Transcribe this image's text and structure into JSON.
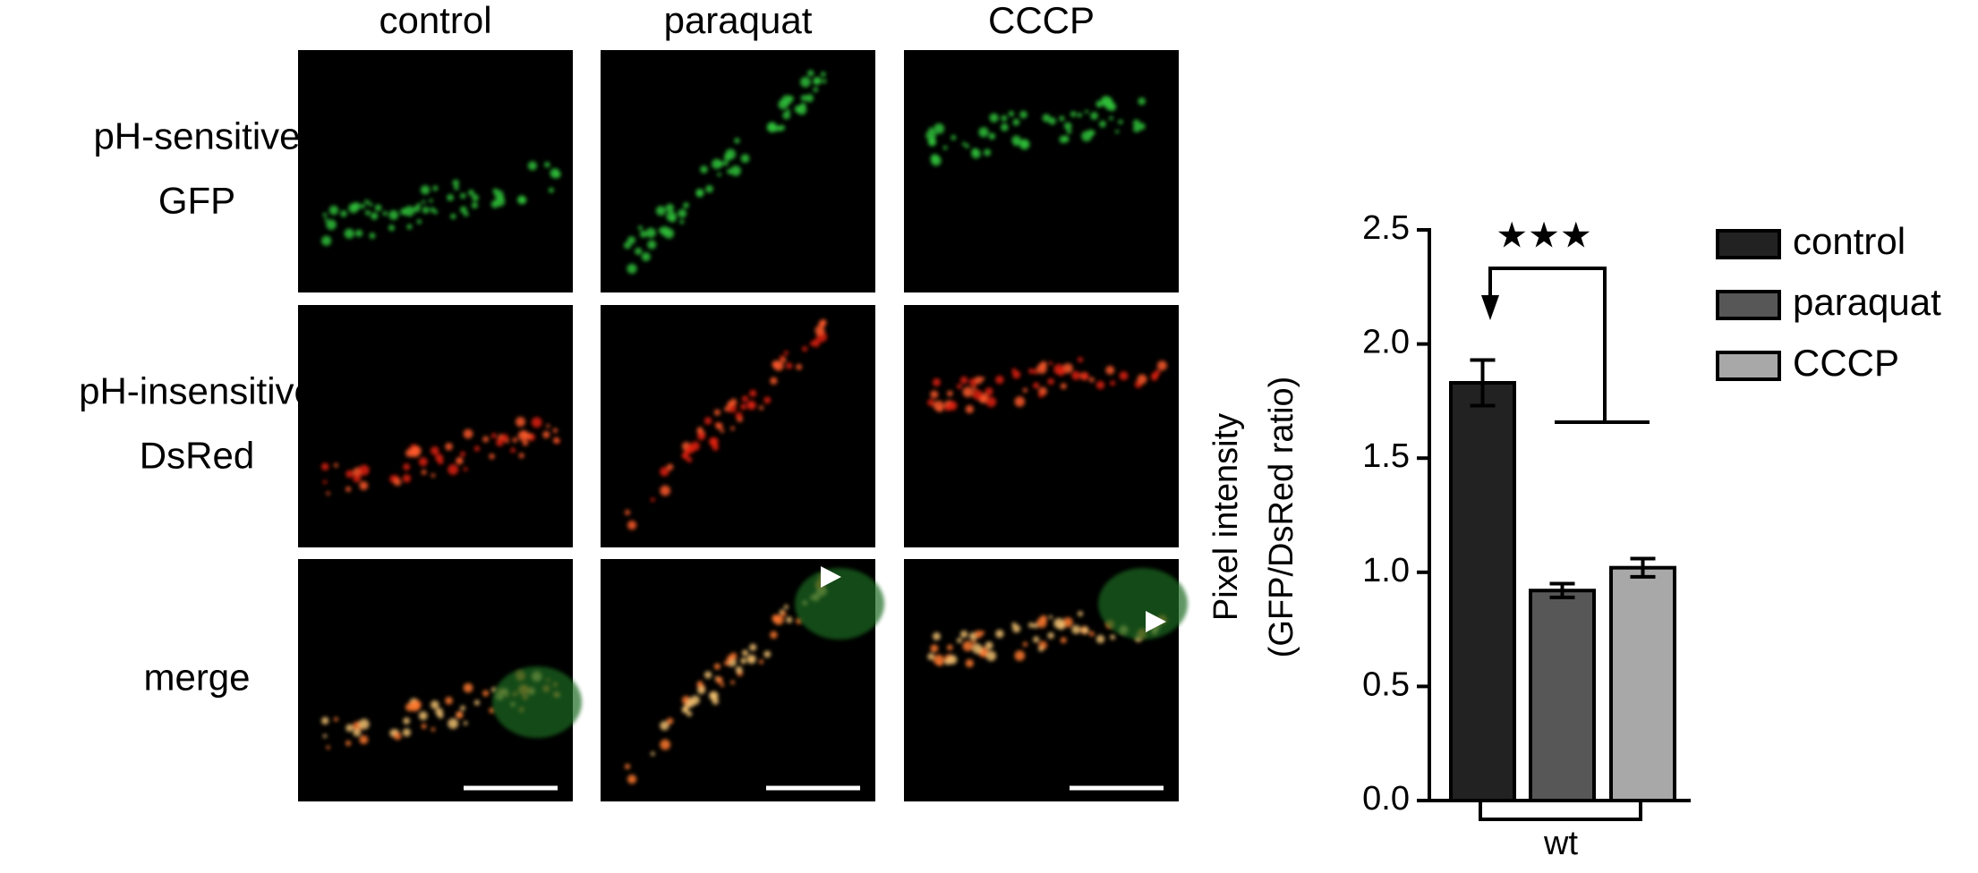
{
  "panels": {
    "columns": [
      "control",
      "paraquat",
      "CCCP"
    ],
    "rows": [
      [
        "pH-sensitive",
        "GFP"
      ],
      [
        "pH-insensitive",
        "DsRed"
      ],
      [
        "merge"
      ]
    ]
  },
  "chart_data": {
    "type": "bar",
    "y_label": [
      "Pixel intensity",
      "(GFP/DsRed ratio)"
    ],
    "categories": [
      "wt"
    ],
    "series": [
      {
        "name": "control",
        "color": "#222222",
        "values": [
          1.83
        ],
        "errors": [
          0.1
        ]
      },
      {
        "name": "paraquat",
        "color": "#575757",
        "values": [
          0.92
        ],
        "errors": [
          0.03
        ]
      },
      {
        "name": "CCCP",
        "color": "#a8a8a8",
        "values": [
          1.02
        ],
        "errors": [
          0.04
        ]
      }
    ],
    "ylim": [
      0,
      2.5
    ],
    "yticks": [
      {
        "value": 0,
        "label": "0.0"
      },
      0.5,
      {
        "value": 1,
        "label": "1.0"
      },
      1.5,
      {
        "value": 2,
        "label": "2.0"
      },
      2.5
    ],
    "annotation": "★★★",
    "legend": "right"
  }
}
